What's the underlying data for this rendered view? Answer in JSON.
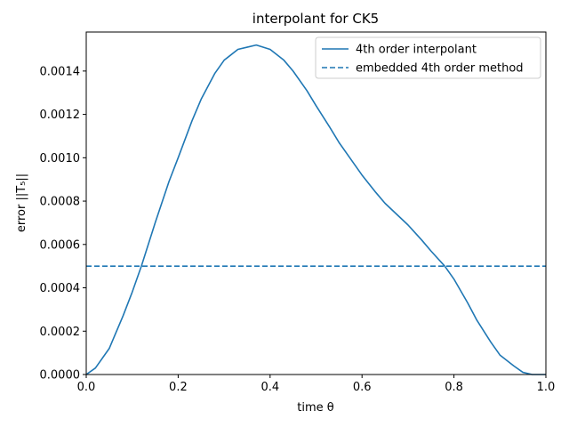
{
  "chart_data": {
    "type": "line",
    "title": "interpolant for CK5",
    "xlabel": "time θ",
    "ylabel": "error ||T₅||",
    "xlim": [
      0.0,
      1.0
    ],
    "ylim": [
      0.0,
      0.00158
    ],
    "xticks": [
      0.0,
      0.2,
      0.4,
      0.6,
      0.8,
      1.0
    ],
    "xtick_labels": [
      "0.0",
      "0.2",
      "0.4",
      "0.6",
      "0.8",
      "1.0"
    ],
    "yticks": [
      0.0,
      0.0002,
      0.0004,
      0.0006,
      0.0008,
      0.001,
      0.0012,
      0.0014
    ],
    "ytick_labels": [
      "0.0000",
      "0.0002",
      "0.0004",
      "0.0006",
      "0.0008",
      "0.0010",
      "0.0012",
      "0.0014"
    ],
    "grid": false,
    "legend_position": "top-right",
    "series": [
      {
        "name": "4th order interpolant",
        "style": "solid",
        "color": "#1f77b4",
        "x": [
          0.0,
          0.02,
          0.05,
          0.08,
          0.1,
          0.12,
          0.15,
          0.18,
          0.2,
          0.23,
          0.25,
          0.28,
          0.3,
          0.33,
          0.35,
          0.37,
          0.4,
          0.43,
          0.45,
          0.48,
          0.5,
          0.53,
          0.55,
          0.58,
          0.6,
          0.63,
          0.65,
          0.68,
          0.7,
          0.73,
          0.75,
          0.78,
          0.8,
          0.83,
          0.85,
          0.88,
          0.9,
          0.93,
          0.95,
          0.97,
          1.0
        ],
        "y": [
          0.0,
          3e-05,
          0.00012,
          0.00027,
          0.00038,
          0.0005,
          0.0007,
          0.00089,
          0.001,
          0.00117,
          0.00127,
          0.00139,
          0.00145,
          0.0015,
          0.00151,
          0.00152,
          0.0015,
          0.00145,
          0.0014,
          0.00131,
          0.00124,
          0.00114,
          0.00107,
          0.00098,
          0.00092,
          0.00084,
          0.00079,
          0.00073,
          0.00069,
          0.00062,
          0.00057,
          0.0005,
          0.00044,
          0.00033,
          0.00025,
          0.00015,
          9e-05,
          4e-05,
          1e-05,
          0.0,
          0.0
        ]
      },
      {
        "name": "embedded 4th order method",
        "style": "dashed",
        "color": "#1f77b4",
        "x": [
          0.0,
          1.0
        ],
        "y": [
          0.0005,
          0.0005
        ]
      }
    ]
  }
}
